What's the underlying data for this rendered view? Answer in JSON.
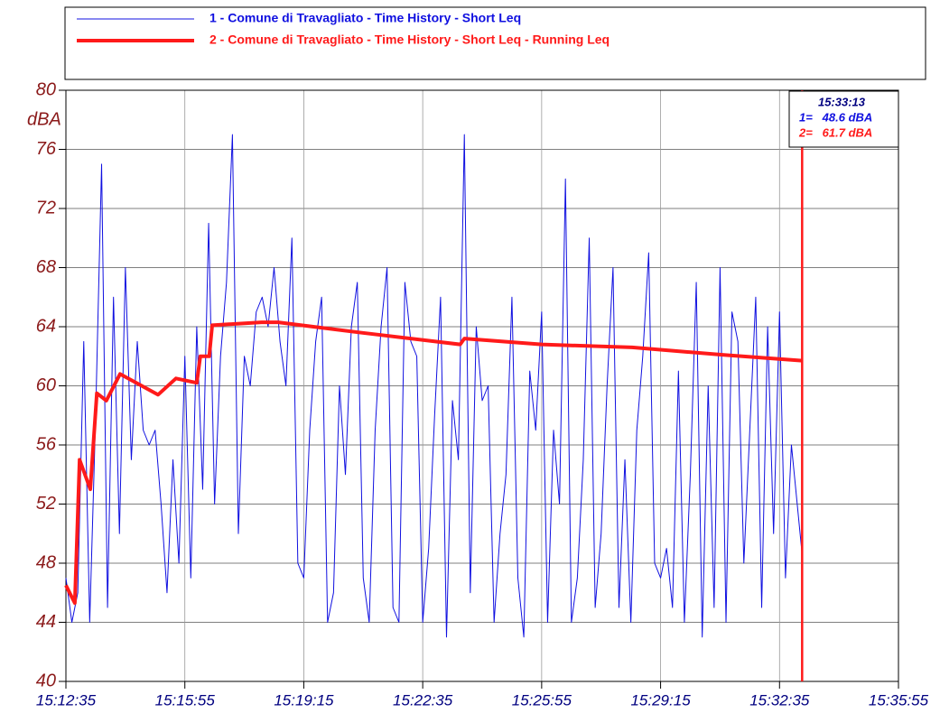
{
  "chart_data": {
    "type": "line",
    "ylabel": "dBA",
    "xlim": [
      54755,
      56155
    ],
    "xticks": [
      {
        "value": 54755,
        "label": "15:12:35"
      },
      {
        "value": 54955,
        "label": "15:15:55"
      },
      {
        "value": 55155,
        "label": "15:19:15"
      },
      {
        "value": 55355,
        "label": "15:22:35"
      },
      {
        "value": 55555,
        "label": "15:25:55"
      },
      {
        "value": 55755,
        "label": "15:29:15"
      },
      {
        "value": 55955,
        "label": "15:32:35"
      },
      {
        "value": 56155,
        "label": "15:35:55"
      }
    ],
    "ylim": [
      40,
      80
    ],
    "yticks": [
      40,
      44,
      48,
      52,
      56,
      60,
      64,
      68,
      72,
      76,
      80
    ],
    "grid": true,
    "series": [
      {
        "name": "1 - Comune di Travagliato - Time History - Short Leq",
        "color": "#1010e0",
        "width": 1,
        "x": [
          54755,
          54765,
          54775,
          54785,
          54795,
          54805,
          54815,
          54825,
          54835,
          54845,
          54855,
          54865,
          54875,
          54885,
          54895,
          54905,
          54915,
          54925,
          54935,
          54945,
          54955,
          54965,
          54975,
          54985,
          54995,
          55005,
          55015,
          55025,
          55035,
          55045,
          55055,
          55065,
          55075,
          55085,
          55095,
          55105,
          55115,
          55125,
          55135,
          55145,
          55155,
          55165,
          55175,
          55185,
          55195,
          55205,
          55215,
          55225,
          55235,
          55245,
          55255,
          55265,
          55275,
          55285,
          55295,
          55305,
          55315,
          55325,
          55335,
          55345,
          55355,
          55365,
          55375,
          55385,
          55395,
          55405,
          55415,
          55425,
          55435,
          55445,
          55455,
          55465,
          55475,
          55485,
          55495,
          55505,
          55515,
          55525,
          55535,
          55545,
          55555,
          55565,
          55575,
          55585,
          55595,
          55605,
          55615,
          55625,
          55635,
          55645,
          55655,
          55665,
          55675,
          55685,
          55695,
          55705,
          55715,
          55725,
          55735,
          55745,
          55755,
          55765,
          55775,
          55785,
          55795,
          55805,
          55815,
          55825,
          55835,
          55845,
          55855,
          55865,
          55875,
          55885,
          55895,
          55905,
          55915,
          55925,
          55935,
          55945,
          55955,
          55965,
          55975,
          55993
        ],
        "values": [
          47,
          44,
          46,
          63,
          44,
          58,
          75,
          45,
          66,
          50,
          68,
          55,
          63,
          57,
          56,
          57,
          52,
          46,
          55,
          48,
          62,
          47,
          64,
          53,
          71,
          52,
          62,
          67,
          77,
          50,
          62,
          60,
          65,
          66,
          64,
          68,
          63,
          60,
          70,
          48,
          47,
          57,
          63,
          66,
          44,
          46,
          60,
          54,
          64,
          67,
          47,
          44,
          57,
          64,
          68,
          45,
          44,
          67,
          63,
          62,
          44,
          49,
          58,
          66,
          43,
          59,
          55,
          77,
          46,
          64,
          59,
          60,
          44,
          50,
          54,
          66,
          47,
          43,
          61,
          57,
          65,
          44,
          57,
          52,
          74,
          44,
          47,
          55,
          70,
          45,
          50,
          60,
          68,
          45,
          55,
          44,
          57,
          62,
          69,
          48,
          47,
          49,
          45,
          61,
          44,
          54,
          67,
          43,
          60,
          45,
          68,
          44,
          65,
          63,
          48,
          57,
          66,
          45,
          64,
          50,
          65,
          47,
          56,
          48.6
        ]
      },
      {
        "name": "2 - Comune di Travagliato - Time History - Short Leq - Running Leq",
        "color": "#ff1a1a",
        "width": 4,
        "x": [
          54755,
          54770,
          54778,
          54796,
          54807,
          54823,
          54846,
          54910,
          54940,
          54975,
          54981,
          54996,
          55001,
          55084,
          55112,
          55251,
          55418,
          55425,
          55555,
          55707,
          55859,
          55993
        ],
        "values": [
          46.5,
          45.3,
          55,
          53,
          59.5,
          59,
          60.8,
          59.4,
          60.5,
          60.2,
          62,
          62,
          64.1,
          64.3,
          64.3,
          63.6,
          62.8,
          63.2,
          62.8,
          62.6,
          62.1,
          61.7
        ]
      }
    ],
    "cursor": {
      "x": 55993,
      "label": "15:33:13",
      "readouts": [
        "1=   48.6 dBA",
        "2=   61.7 dBA"
      ]
    }
  }
}
